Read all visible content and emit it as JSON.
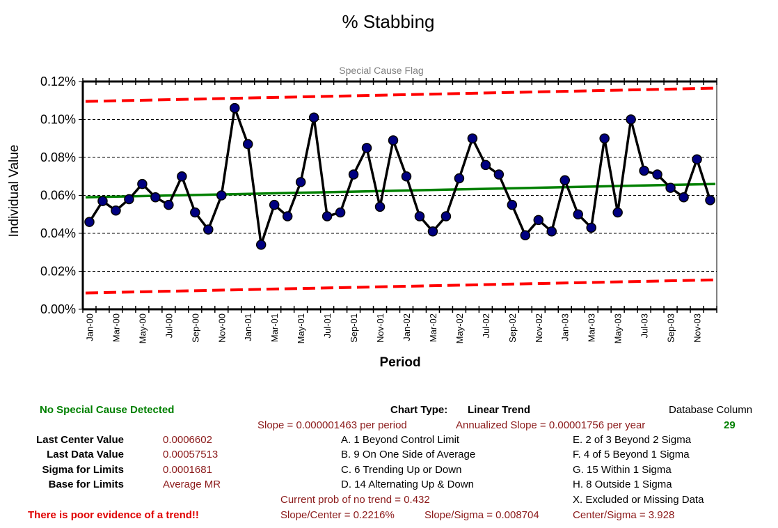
{
  "chart_data": {
    "type": "line",
    "title": "% Stabbing",
    "subtitle": "Special Cause Flag",
    "xlabel": "Period",
    "ylabel": "Individual Value",
    "ylim": [
      0,
      0.0012
    ],
    "yticks": [
      0,
      0.0002,
      0.0004,
      0.0006,
      0.0008,
      0.001,
      0.0012
    ],
    "ytick_labels": [
      "0.00%",
      "0.02%",
      "0.04%",
      "0.06%",
      "0.08%",
      "0.10%",
      "0.12%"
    ],
    "xtick_labels": [
      "Jan-00",
      "Mar-00",
      "May-00",
      "Jul-00",
      "Sep-00",
      "Nov-00",
      "Jan-01",
      "Mar-01",
      "May-01",
      "Jul-01",
      "Sep-01",
      "Nov-01",
      "Jan-02",
      "Mar-02",
      "May-02",
      "Jul-02",
      "Sep-02",
      "Nov-02",
      "Jan-03",
      "Mar-03",
      "May-03",
      "Jul-03",
      "Sep-03",
      "Nov-03"
    ],
    "grid": "horizontal dashed",
    "series": [
      {
        "role": "data",
        "values": [
          0.00046,
          0.00057,
          0.00052,
          0.00058,
          0.00066,
          0.00059,
          0.00055,
          0.0007,
          0.00051,
          0.00042,
          0.0006,
          0.00106,
          0.00087,
          0.00034,
          0.00055,
          0.00049,
          0.00067,
          0.00101,
          0.00049,
          0.00051,
          0.00071,
          0.00085,
          0.00054,
          0.00089,
          0.0007,
          0.00049,
          0.00041,
          0.00049,
          0.00069,
          0.0009,
          0.00076,
          0.00071,
          0.00055,
          0.00039,
          0.00047,
          0.00041,
          0.00068,
          0.0005,
          0.00043,
          0.0009,
          0.00051,
          0.001,
          0.00073,
          0.00071,
          0.00064,
          0.00059,
          0.00079,
          0.000575
        ],
        "color": "#000000",
        "marker_color": "#000080"
      },
      {
        "role": "center",
        "start": 0.00059,
        "end": 0.0006602,
        "color": "#008000"
      },
      {
        "role": "ucl",
        "start": 0.001095,
        "end": 0.001165,
        "color": "#ff0000"
      },
      {
        "role": "lcl",
        "start": 8.6e-05,
        "end": 0.000155,
        "color": "#ff0000"
      }
    ]
  },
  "info": {
    "status": "No Special Cause Detected",
    "chart_type_label": "Chart Type:",
    "chart_type_value": "Linear Trend",
    "db_column_label": "Database Column",
    "db_column_value": "29",
    "slope": "Slope = 0.000001463 per period",
    "annualized_slope": "Annualized Slope = 0.00001756 per year",
    "stats": [
      {
        "label": "Last Center Value",
        "value": "0.0006602"
      },
      {
        "label": "Last Data Value",
        "value": "0.00057513"
      },
      {
        "label": "Sigma for Limits",
        "value": "0.0001681"
      },
      {
        "label": "Base for Limits",
        "value": "Average MR"
      }
    ],
    "rules_left": [
      "A. 1 Beyond Control Limit",
      "B. 9 On One Side of Average",
      "C. 6 Trending Up or Down",
      "D. 14 Alternating  Up & Down"
    ],
    "rules_right": [
      "E.  2 of 3 Beyond 2 Sigma",
      "F.  4 of 5 Beyond 1 Sigma",
      "G.  15 Within 1 Sigma",
      "H.  8 Outside 1 Sigma",
      "X.  Excluded or Missing Data"
    ],
    "prob_no_trend": "Current prob of no trend = 0.432",
    "trend_warning": "There is poor evidence of a trend!!",
    "slope_center": "Slope/Center = 0.2216%",
    "slope_sigma": "Slope/Sigma = 0.008704",
    "center_sigma": "Center/Sigma = 3.928"
  }
}
